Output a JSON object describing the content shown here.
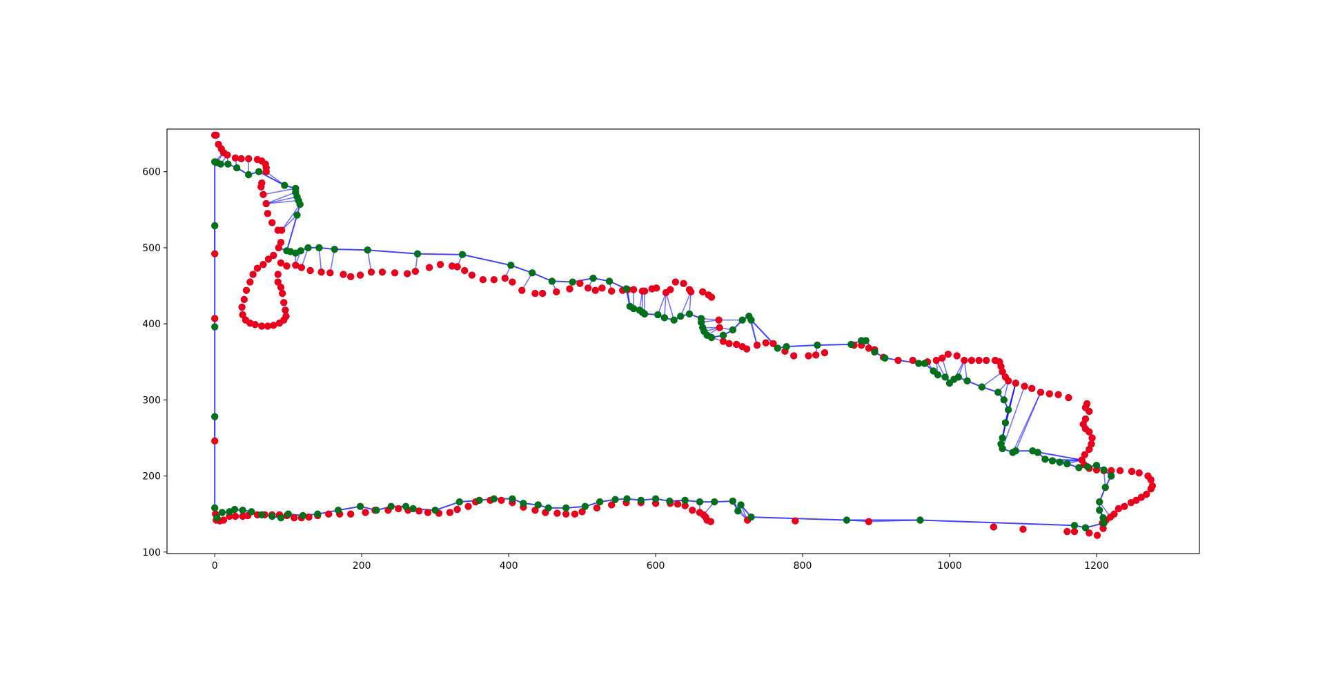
{
  "chart_data": {
    "type": "scatter",
    "title": "",
    "xlabel": "",
    "ylabel": "",
    "xlim": [
      -65,
      1340
    ],
    "ylim": [
      98,
      656
    ],
    "xticks": [
      0,
      200,
      400,
      600,
      800,
      1000,
      1200
    ],
    "yticks": [
      100,
      200,
      300,
      400,
      500,
      600
    ],
    "xtick_labels": [
      "0",
      "200",
      "400",
      "600",
      "800",
      "1000",
      "1200"
    ],
    "ytick_labels": [
      "100",
      "200",
      "300",
      "400",
      "500",
      "600"
    ],
    "grid": false,
    "legend": "none",
    "colors": {
      "red_points": "#e8001c",
      "green_points": "#00701a",
      "links": "#0000ff",
      "outline": "#0000ff"
    },
    "red_points": [
      [
        0,
        648
      ],
      [
        2,
        648
      ],
      [
        5,
        636
      ],
      [
        9,
        630
      ],
      [
        12,
        625
      ],
      [
        17,
        622
      ],
      [
        28,
        618
      ],
      [
        36,
        617
      ],
      [
        46,
        617
      ],
      [
        58,
        616
      ],
      [
        64,
        614
      ],
      [
        69,
        610
      ],
      [
        70,
        605
      ],
      [
        70,
        600
      ],
      [
        64,
        585
      ],
      [
        63,
        580
      ],
      [
        66,
        570
      ],
      [
        70,
        558
      ],
      [
        72,
        545
      ],
      [
        78,
        533
      ],
      [
        86,
        523
      ],
      [
        91,
        523
      ],
      [
        90,
        507
      ],
      [
        87,
        500
      ],
      [
        80,
        490
      ],
      [
        73,
        485
      ],
      [
        66,
        478
      ],
      [
        58,
        473
      ],
      [
        52,
        465
      ],
      [
        48,
        455
      ],
      [
        43,
        444
      ],
      [
        40,
        432
      ],
      [
        37,
        422
      ],
      [
        38,
        412
      ],
      [
        42,
        405
      ],
      [
        48,
        401
      ],
      [
        55,
        399
      ],
      [
        64,
        397
      ],
      [
        72,
        397
      ],
      [
        80,
        398
      ],
      [
        88,
        401
      ],
      [
        94,
        405
      ],
      [
        97,
        410
      ],
      [
        96,
        418
      ],
      [
        94,
        428
      ],
      [
        92,
        440
      ],
      [
        90,
        448
      ],
      [
        86,
        455
      ],
      [
        86,
        465
      ],
      [
        90,
        480
      ],
      [
        98,
        476
      ],
      [
        110,
        477
      ],
      [
        118,
        474
      ],
      [
        130,
        470
      ],
      [
        145,
        468
      ],
      [
        157,
        467
      ],
      [
        175,
        465
      ],
      [
        185,
        462
      ],
      [
        198,
        464
      ],
      [
        213,
        468
      ],
      [
        228,
        468
      ],
      [
        245,
        467
      ],
      [
        262,
        466
      ],
      [
        273,
        469
      ],
      [
        292,
        474
      ],
      [
        307,
        478
      ],
      [
        323,
        476
      ],
      [
        330,
        475
      ],
      [
        340,
        470
      ],
      [
        350,
        464
      ],
      [
        365,
        458
      ],
      [
        380,
        458
      ],
      [
        395,
        460
      ],
      [
        405,
        455
      ],
      [
        418,
        444
      ],
      [
        436,
        440
      ],
      [
        446,
        440
      ],
      [
        465,
        442
      ],
      [
        483,
        446
      ],
      [
        497,
        453
      ],
      [
        508,
        447
      ],
      [
        518,
        444
      ],
      [
        527,
        447
      ],
      [
        540,
        443
      ],
      [
        555,
        444
      ],
      [
        562,
        445
      ],
      [
        570,
        445
      ],
      [
        582,
        443
      ],
      [
        585,
        443
      ],
      [
        595,
        446
      ],
      [
        601,
        447
      ],
      [
        614,
        441
      ],
      [
        620,
        445
      ],
      [
        627,
        455
      ],
      [
        638,
        453
      ],
      [
        646,
        445
      ],
      [
        648,
        442
      ],
      [
        664,
        442
      ],
      [
        672,
        438
      ],
      [
        676,
        435
      ],
      [
        686,
        405
      ],
      [
        687,
        395
      ],
      [
        692,
        377
      ],
      [
        700,
        374
      ],
      [
        710,
        373
      ],
      [
        718,
        370
      ],
      [
        724,
        367
      ],
      [
        738,
        372
      ],
      [
        750,
        375
      ],
      [
        760,
        374
      ],
      [
        776,
        364
      ],
      [
        788,
        358
      ],
      [
        808,
        358
      ],
      [
        818,
        359
      ],
      [
        830,
        362
      ],
      [
        870,
        372
      ],
      [
        880,
        372
      ],
      [
        890,
        368
      ],
      [
        898,
        366
      ],
      [
        910,
        356
      ],
      [
        930,
        352
      ],
      [
        950,
        352
      ],
      [
        970,
        350
      ],
      [
        982,
        352
      ],
      [
        990,
        355
      ],
      [
        998,
        360
      ],
      [
        1010,
        358
      ],
      [
        1020,
        352
      ],
      [
        1030,
        352
      ],
      [
        1040,
        352
      ],
      [
        1050,
        352
      ],
      [
        1062,
        352
      ],
      [
        1068,
        350
      ],
      [
        1070,
        344
      ],
      [
        1072,
        337
      ],
      [
        1076,
        330
      ],
      [
        1080,
        325
      ],
      [
        1090,
        322
      ],
      [
        1102,
        318
      ],
      [
        1112,
        315
      ],
      [
        1124,
        310
      ],
      [
        1136,
        308
      ],
      [
        1148,
        307
      ],
      [
        1162,
        303
      ],
      [
        1185,
        290
      ],
      [
        1187,
        295
      ],
      [
        1190,
        285
      ],
      [
        1185,
        275
      ],
      [
        1182,
        268
      ],
      [
        1185,
        262
      ],
      [
        1190,
        258
      ],
      [
        1194,
        250
      ],
      [
        1193,
        242
      ],
      [
        1190,
        235
      ],
      [
        1184,
        228
      ],
      [
        1180,
        221
      ],
      [
        1183,
        215
      ],
      [
        1190,
        210
      ],
      [
        1200,
        208
      ],
      [
        1210,
        207
      ],
      [
        1220,
        207
      ],
      [
        1232,
        207
      ],
      [
        1248,
        206
      ],
      [
        1258,
        204
      ],
      [
        1270,
        200
      ],
      [
        1274,
        195
      ],
      [
        1276,
        187
      ],
      [
        1274,
        183
      ],
      [
        1268,
        176
      ],
      [
        1261,
        172
      ],
      [
        1254,
        168
      ],
      [
        1247,
        165
      ],
      [
        1238,
        160
      ],
      [
        1230,
        157
      ],
      [
        1224,
        150
      ],
      [
        1219,
        146
      ],
      [
        1213,
        142
      ],
      [
        1208,
        138
      ],
      [
        1209,
        131
      ],
      [
        1201,
        122
      ],
      [
        1190,
        125
      ],
      [
        1170,
        127
      ],
      [
        1160,
        127
      ],
      [
        1100,
        130
      ],
      [
        1060,
        133
      ],
      [
        890,
        140
      ],
      [
        790,
        141
      ],
      [
        725,
        142
      ],
      [
        675,
        140
      ],
      [
        670,
        142
      ],
      [
        668,
        146
      ],
      [
        665,
        149
      ],
      [
        660,
        152
      ],
      [
        650,
        155
      ],
      [
        640,
        161
      ],
      [
        630,
        163
      ],
      [
        620,
        164
      ],
      [
        600,
        164
      ],
      [
        580,
        165
      ],
      [
        560,
        165
      ],
      [
        540,
        162
      ],
      [
        520,
        158
      ],
      [
        500,
        153
      ],
      [
        490,
        150
      ],
      [
        478,
        150
      ],
      [
        466,
        151
      ],
      [
        450,
        152
      ],
      [
        436,
        155
      ],
      [
        420,
        159
      ],
      [
        405,
        165
      ],
      [
        390,
        168
      ],
      [
        375,
        168
      ],
      [
        355,
        166
      ],
      [
        345,
        160
      ],
      [
        330,
        156
      ],
      [
        320,
        152
      ],
      [
        305,
        151
      ],
      [
        290,
        152
      ],
      [
        278,
        154
      ],
      [
        263,
        155
      ],
      [
        250,
        157
      ],
      [
        236,
        155
      ],
      [
        218,
        155
      ],
      [
        205,
        152
      ],
      [
        185,
        150
      ],
      [
        170,
        150
      ],
      [
        155,
        150
      ],
      [
        140,
        148
      ],
      [
        128,
        146
      ],
      [
        118,
        145
      ],
      [
        108,
        145
      ],
      [
        98,
        148
      ],
      [
        88,
        149
      ],
      [
        78,
        149
      ],
      [
        68,
        149
      ],
      [
        58,
        149
      ],
      [
        45,
        148
      ],
      [
        38,
        147
      ],
      [
        28,
        147
      ],
      [
        20,
        147
      ],
      [
        12,
        142
      ],
      [
        7,
        141
      ],
      [
        2,
        142
      ],
      [
        1,
        150
      ],
      [
        0,
        246
      ],
      [
        0,
        407
      ],
      [
        0,
        492
      ]
    ],
    "green_points": [
      [
        0,
        613
      ],
      [
        3,
        612
      ],
      [
        8,
        610
      ],
      [
        18,
        610
      ],
      [
        30,
        605
      ],
      [
        46,
        596
      ],
      [
        60,
        600
      ],
      [
        95,
        582
      ],
      [
        110,
        578
      ],
      [
        110,
        573
      ],
      [
        112,
        567
      ],
      [
        114,
        562
      ],
      [
        116,
        557
      ],
      [
        112,
        543
      ],
      [
        98,
        496
      ],
      [
        103,
        495
      ],
      [
        110,
        493
      ],
      [
        117,
        496
      ],
      [
        127,
        500
      ],
      [
        142,
        500
      ],
      [
        163,
        498
      ],
      [
        208,
        497
      ],
      [
        276,
        492
      ],
      [
        337,
        491
      ],
      [
        403,
        477
      ],
      [
        432,
        467
      ],
      [
        459,
        456
      ],
      [
        487,
        455
      ],
      [
        515,
        460
      ],
      [
        537,
        456
      ],
      [
        560,
        446
      ],
      [
        565,
        423
      ],
      [
        570,
        420
      ],
      [
        578,
        418
      ],
      [
        582,
        415
      ],
      [
        585,
        413
      ],
      [
        603,
        412
      ],
      [
        612,
        408
      ],
      [
        625,
        405
      ],
      [
        634,
        410
      ],
      [
        646,
        413
      ],
      [
        662,
        407
      ],
      [
        662,
        402
      ],
      [
        664,
        395
      ],
      [
        666,
        390
      ],
      [
        670,
        385
      ],
      [
        676,
        382
      ],
      [
        692,
        385
      ],
      [
        705,
        392
      ],
      [
        718,
        405
      ],
      [
        727,
        410
      ],
      [
        730,
        405
      ],
      [
        766,
        368
      ],
      [
        778,
        370
      ],
      [
        820,
        372
      ],
      [
        866,
        373
      ],
      [
        880,
        378
      ],
      [
        886,
        378
      ],
      [
        898,
        363
      ],
      [
        912,
        355
      ],
      [
        958,
        348
      ],
      [
        966,
        348
      ],
      [
        978,
        338
      ],
      [
        984,
        333
      ],
      [
        994,
        330
      ],
      [
        1000,
        322
      ],
      [
        1006,
        327
      ],
      [
        1012,
        330
      ],
      [
        1024,
        325
      ],
      [
        1044,
        317
      ],
      [
        1066,
        310
      ],
      [
        1074,
        300
      ],
      [
        1080,
        287
      ],
      [
        1076,
        270
      ],
      [
        1072,
        250
      ],
      [
        1070,
        242
      ],
      [
        1072,
        236
      ],
      [
        1086,
        231
      ],
      [
        1090,
        233
      ],
      [
        1113,
        233
      ],
      [
        1120,
        231
      ],
      [
        1130,
        222
      ],
      [
        1140,
        220
      ],
      [
        1150,
        218
      ],
      [
        1160,
        216
      ],
      [
        1176,
        211
      ],
      [
        1188,
        212
      ],
      [
        1200,
        214
      ],
      [
        1210,
        208
      ],
      [
        1220,
        200
      ],
      [
        1212,
        185
      ],
      [
        1204,
        166
      ],
      [
        1204,
        155
      ],
      [
        1209,
        145
      ],
      [
        1210,
        138
      ],
      [
        1185,
        132
      ],
      [
        1170,
        135
      ],
      [
        960,
        142
      ],
      [
        860,
        142
      ],
      [
        730,
        146
      ],
      [
        716,
        162
      ],
      [
        712,
        154
      ],
      [
        705,
        167
      ],
      [
        680,
        166
      ],
      [
        660,
        166
      ],
      [
        640,
        168
      ],
      [
        619,
        167
      ],
      [
        600,
        170
      ],
      [
        580,
        168
      ],
      [
        561,
        170
      ],
      [
        545,
        169
      ],
      [
        524,
        166
      ],
      [
        504,
        160
      ],
      [
        478,
        158
      ],
      [
        454,
        158
      ],
      [
        440,
        162
      ],
      [
        420,
        164
      ],
      [
        405,
        170
      ],
      [
        380,
        170
      ],
      [
        360,
        168
      ],
      [
        333,
        166
      ],
      [
        300,
        155
      ],
      [
        270,
        157
      ],
      [
        260,
        160
      ],
      [
        240,
        160
      ],
      [
        220,
        155
      ],
      [
        198,
        160
      ],
      [
        168,
        155
      ],
      [
        140,
        150
      ],
      [
        120,
        148
      ],
      [
        100,
        150
      ],
      [
        90,
        145
      ],
      [
        78,
        147
      ],
      [
        64,
        149
      ],
      [
        50,
        153
      ],
      [
        38,
        155
      ],
      [
        27,
        156
      ],
      [
        20,
        153
      ],
      [
        10,
        152
      ],
      [
        3,
        145
      ],
      [
        0,
        158
      ],
      [
        0,
        278
      ],
      [
        0,
        396
      ],
      [
        0,
        529
      ]
    ]
  }
}
